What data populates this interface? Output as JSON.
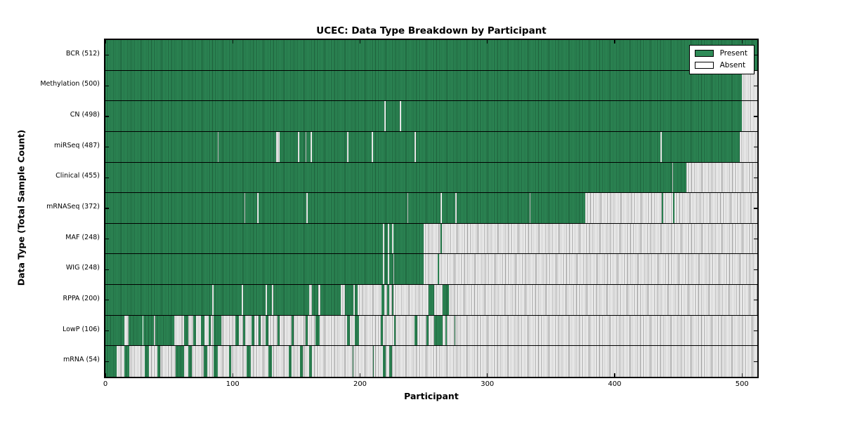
{
  "title": "UCEC: Data Type Breakdown by Participant",
  "axes": {
    "xlabel": "Participant",
    "ylabel": "Data Type (Total Sample Count)"
  },
  "x_axis": {
    "ticks": [
      0,
      100,
      200,
      300,
      400,
      500
    ],
    "max": 512
  },
  "legend": {
    "items": [
      {
        "label": "Present",
        "state": "present"
      },
      {
        "label": "Absent",
        "state": "absent"
      }
    ]
  },
  "colors": {
    "present_fill": "#2E8B57",
    "present_edge": "#1B5A37",
    "absent_fill": "#FFFFFF",
    "absent_edge": "#8A8A8A",
    "frame": "#000000",
    "background": "#FFFFFF"
  },
  "chart_data": {
    "type": "heatmap",
    "title": "UCEC: Data Type Breakdown by Participant",
    "xlabel": "Participant",
    "ylabel": "Data Type (Total Sample Count)",
    "x_range": [
      0,
      512
    ],
    "x_ticks": [
      0,
      100,
      200,
      300,
      400,
      500
    ],
    "legend": [
      "Present",
      "Absent"
    ],
    "legend_position": "upper right",
    "grid": false,
    "encoding": "Each row is a data type; base state spans participants 0-512; runs are [start,end) participant ranges of the opposite state (present rows list absent runs, absent rows list present runs).",
    "rows": [
      {
        "name": "BCR",
        "label": "BCR (512)",
        "total": 512,
        "base": "present",
        "runs": []
      },
      {
        "name": "Methylation",
        "label": "Methylation (500)",
        "total": 500,
        "base": "present",
        "runs": [
          [
            500,
            512
          ]
        ]
      },
      {
        "name": "CN",
        "label": "CN (498)",
        "total": 498,
        "base": "present",
        "runs": [
          [
            219,
            220
          ],
          [
            231,
            232
          ],
          [
            500,
            512
          ]
        ]
      },
      {
        "name": "miRSeq",
        "label": "miRSeq (487)",
        "total": 487,
        "base": "present",
        "runs": [
          [
            88,
            89
          ],
          [
            134,
            137
          ],
          [
            151,
            152
          ],
          [
            157,
            158
          ],
          [
            161,
            162
          ],
          [
            190,
            191
          ],
          [
            209,
            210
          ],
          [
            243,
            244
          ],
          [
            436,
            437
          ],
          [
            498,
            512
          ]
        ]
      },
      {
        "name": "Clinical",
        "label": "Clinical (455)",
        "total": 455,
        "base": "present",
        "runs": [
          [
            445,
            446
          ],
          [
            456,
            512
          ]
        ]
      },
      {
        "name": "mRNASeq",
        "label": "mRNASeq (372)",
        "total": 372,
        "base": "present",
        "runs": [
          [
            109,
            110
          ],
          [
            119,
            120
          ],
          [
            158,
            159
          ],
          [
            237,
            238
          ],
          [
            263,
            264
          ],
          [
            275,
            276
          ],
          [
            333,
            334
          ],
          [
            377,
            437
          ],
          [
            438,
            446
          ],
          [
            447,
            512
          ]
        ]
      },
      {
        "name": "MAF",
        "label": "MAF (248)",
        "total": 248,
        "base": "present",
        "runs": [
          [
            218,
            219
          ],
          [
            222,
            223
          ],
          [
            225,
            226
          ],
          [
            250,
            263
          ],
          [
            264,
            512
          ]
        ]
      },
      {
        "name": "WIG",
        "label": "WIG (248)",
        "total": 248,
        "base": "present",
        "runs": [
          [
            218,
            219
          ],
          [
            222,
            223
          ],
          [
            226,
            227
          ],
          [
            250,
            261
          ],
          [
            262,
            512
          ]
        ]
      },
      {
        "name": "RPPA",
        "label": "RPPA (200)",
        "total": 200,
        "base": "present",
        "runs": [
          [
            84,
            85
          ],
          [
            107,
            108
          ],
          [
            126,
            127
          ],
          [
            131,
            132
          ],
          [
            160,
            162
          ],
          [
            167,
            169
          ],
          [
            185,
            188
          ],
          [
            195,
            196
          ],
          [
            198,
            217
          ],
          [
            219,
            221
          ],
          [
            223,
            225
          ],
          [
            226,
            254
          ],
          [
            258,
            265
          ],
          [
            270,
            512
          ]
        ]
      },
      {
        "name": "LowP",
        "label": "LowP (106)",
        "total": 106,
        "base": "absent",
        "runs": [
          [
            0,
            15
          ],
          [
            18,
            29
          ],
          [
            30,
            38
          ],
          [
            39,
            54
          ],
          [
            62,
            65
          ],
          [
            69,
            71
          ],
          [
            75,
            78
          ],
          [
            81,
            83
          ],
          [
            85,
            91
          ],
          [
            102,
            105
          ],
          [
            108,
            110
          ],
          [
            115,
            117
          ],
          [
            120,
            122
          ],
          [
            126,
            128
          ],
          [
            135,
            137
          ],
          [
            146,
            148
          ],
          [
            157,
            159
          ],
          [
            165,
            168
          ],
          [
            190,
            192
          ],
          [
            196,
            199
          ],
          [
            216,
            218
          ],
          [
            227,
            228
          ],
          [
            243,
            245
          ],
          [
            252,
            254
          ],
          [
            258,
            265
          ],
          [
            267,
            268
          ],
          [
            274,
            275
          ]
        ]
      },
      {
        "name": "mRNA",
        "label": "mRNA (54)",
        "total": 54,
        "base": "absent",
        "runs": [
          [
            0,
            9
          ],
          [
            15,
            19
          ],
          [
            31,
            34
          ],
          [
            41,
            43
          ],
          [
            55,
            62
          ],
          [
            65,
            68
          ],
          [
            77,
            80
          ],
          [
            85,
            88
          ],
          [
            97,
            99
          ],
          [
            111,
            114
          ],
          [
            128,
            131
          ],
          [
            144,
            146
          ],
          [
            153,
            155
          ],
          [
            160,
            162
          ],
          [
            194,
            195
          ],
          [
            210,
            211
          ],
          [
            218,
            220
          ],
          [
            223,
            225
          ]
        ]
      }
    ]
  }
}
